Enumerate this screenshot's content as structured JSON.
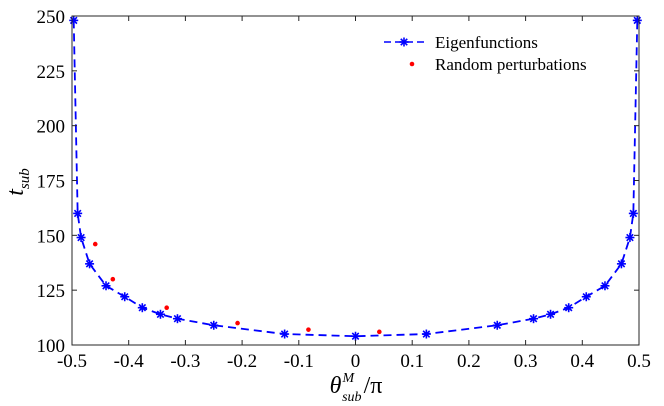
{
  "chart_data": {
    "type": "line",
    "title": "",
    "xlabel": {
      "base": "θ",
      "sup": "M",
      "sub": "sub",
      "suffix": "/π"
    },
    "ylabel": {
      "base": "t",
      "sub": "sub"
    },
    "xlim": [
      -0.5,
      0.5
    ],
    "ylim": [
      100,
      250
    ],
    "xticks": [
      -0.5,
      -0.4,
      -0.3,
      -0.2,
      -0.1,
      0,
      0.1,
      0.2,
      0.3,
      0.4,
      0.5
    ],
    "xtick_labels": [
      "-0.5",
      "-0.4",
      "-0.3",
      "-0.2",
      "-0.1",
      "0",
      "0.1",
      "0.2",
      "0.3",
      "0.4",
      "0.5"
    ],
    "yticks": [
      100,
      125,
      150,
      175,
      200,
      225,
      250
    ],
    "ytick_labels": [
      "100",
      "125",
      "150",
      "175",
      "200",
      "225",
      "250"
    ],
    "grid": false,
    "legend_position": "top-right",
    "series": [
      {
        "name": "Eigenfunctions",
        "style": "dashed-line-star-markers",
        "color": "#0000ff",
        "x": [
          -0.497,
          -0.49,
          -0.484,
          -0.469,
          -0.44,
          -0.407,
          -0.376,
          -0.344,
          -0.314,
          -0.25,
          -0.125,
          0,
          0.125,
          0.25,
          0.314,
          0.344,
          0.376,
          0.407,
          0.44,
          0.469,
          0.484,
          0.49,
          0.497
        ],
        "y": [
          248,
          160,
          149,
          137,
          127,
          122,
          117,
          114,
          112,
          109,
          105,
          104,
          105,
          109,
          112,
          114,
          117,
          122,
          127,
          137,
          149,
          160,
          248
        ]
      },
      {
        "name": "Random perturbations",
        "style": "dots",
        "color": "#ff0000",
        "x": [
          -0.459,
          -0.428,
          -0.333,
          -0.208,
          -0.083,
          0.042
        ],
        "y": [
          146,
          130,
          117,
          110,
          107,
          106
        ]
      }
    ]
  }
}
